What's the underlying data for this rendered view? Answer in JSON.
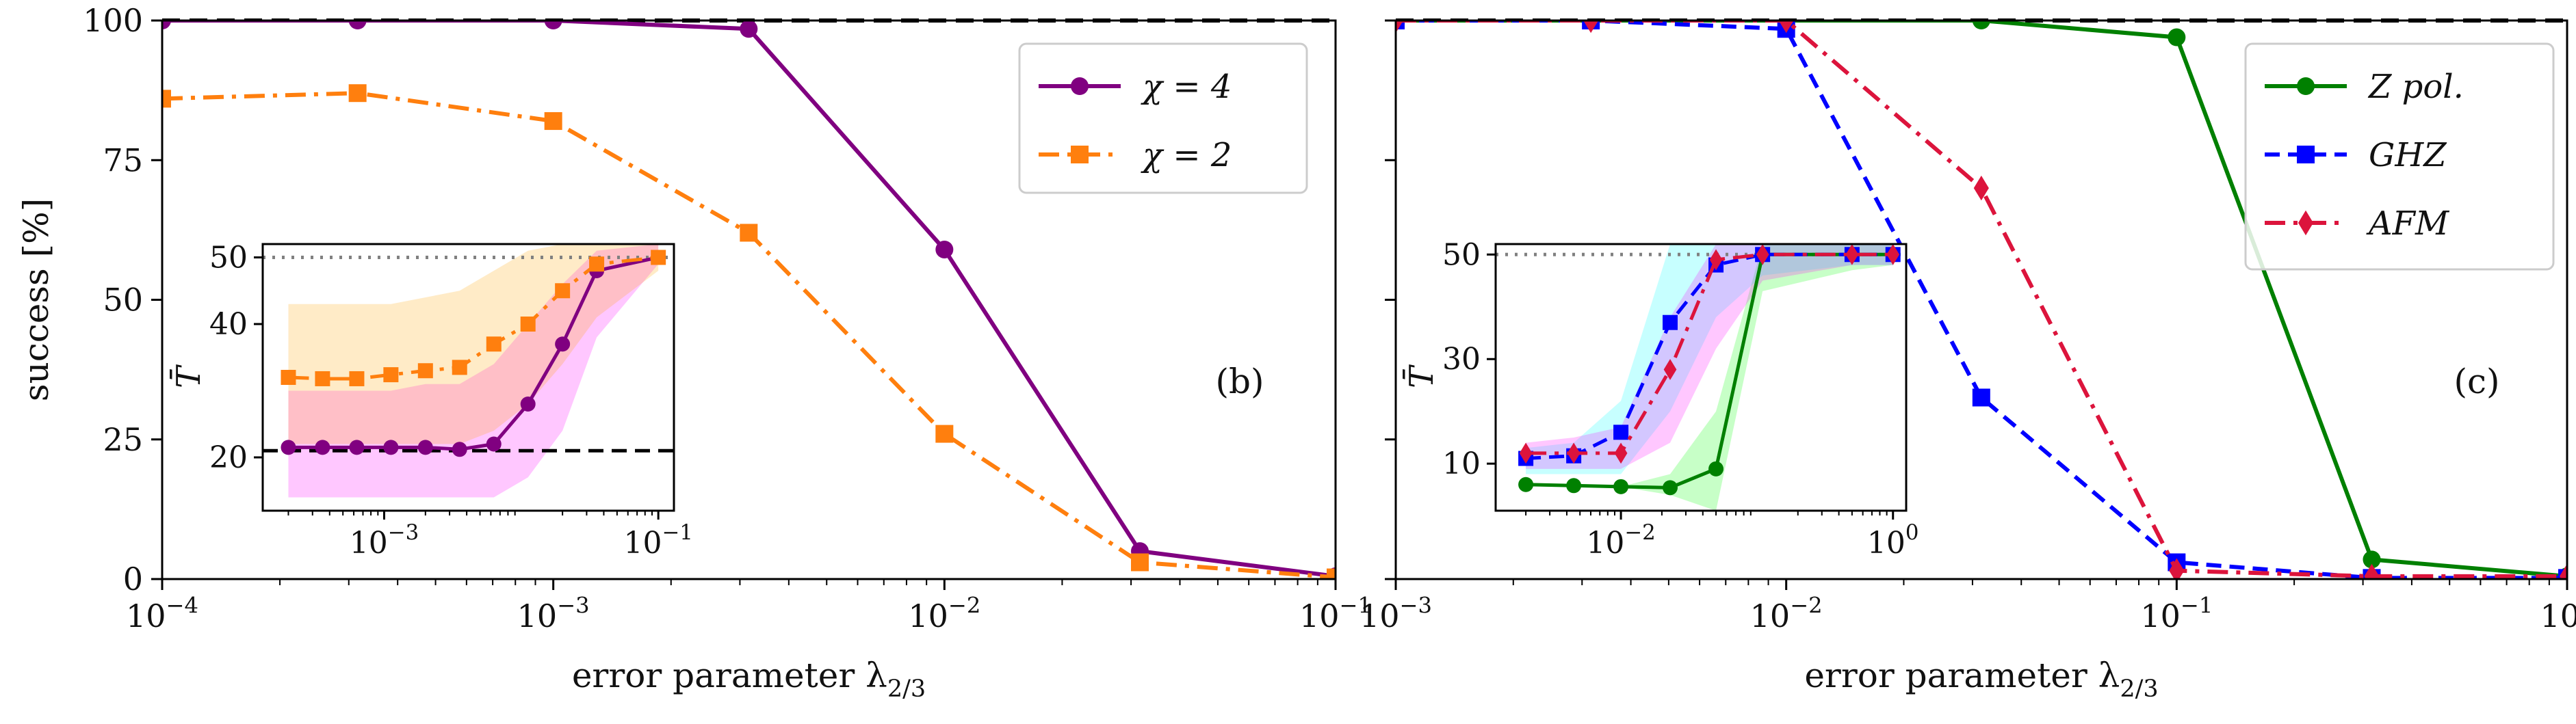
{
  "chart_data": [
    {
      "type": "line",
      "panel_label": "(b)",
      "xlabel": "error parameter λ2/3",
      "ylabel": "success [%]",
      "xscale": "log",
      "xlim": [
        0.0001,
        0.1
      ],
      "ylim": [
        0,
        100
      ],
      "xticks": [
        {
          "value": 0.0001,
          "label": "10-4"
        },
        {
          "value": 0.001,
          "label": "10-3"
        },
        {
          "value": 0.01,
          "label": "10-2"
        },
        {
          "value": 0.1,
          "label": "10-1"
        }
      ],
      "yticks": [
        {
          "value": 0,
          "label": "0"
        },
        {
          "value": 25,
          "label": "25"
        },
        {
          "value": 50,
          "label": "50"
        },
        {
          "value": 75,
          "label": "75"
        },
        {
          "value": 100,
          "label": "100"
        }
      ],
      "reference_line": 100,
      "legend_position": "top-right",
      "series": [
        {
          "name": "χ = 4",
          "color": "#800080",
          "marker": "circle",
          "dash": "solid",
          "x": [
            0.0001,
            0.000316,
            0.001,
            0.00316,
            0.01,
            0.0316,
            0.1
          ],
          "y": [
            100,
            100,
            100,
            98.5,
            59,
            5,
            0.5
          ]
        },
        {
          "name": "χ = 2",
          "color": "#ff7f0e",
          "marker": "square",
          "dash": "dashdot",
          "x": [
            0.0001,
            0.000316,
            0.001,
            0.00316,
            0.01,
            0.0316,
            0.1
          ],
          "y": [
            86,
            87,
            82,
            62,
            26,
            3,
            0.3
          ]
        }
      ],
      "inset": {
        "ylabel": "T̄",
        "xscale": "log",
        "xlim": [
          0.00013,
          0.13
        ],
        "ylim": [
          12,
          52
        ],
        "xticks": [
          {
            "value": 0.001,
            "label": "10-3"
          },
          {
            "value": 0.1,
            "label": "10-1"
          }
        ],
        "yticks": [
          {
            "value": 20,
            "label": "20"
          },
          {
            "value": 40,
            "label": "40"
          },
          {
            "value": 50,
            "label": "50"
          }
        ],
        "reference_lines": [
          {
            "value": 50,
            "style": "dotted",
            "color": "#808080"
          },
          {
            "value": 21,
            "style": "dashed",
            "color": "#000000"
          }
        ],
        "series": [
          {
            "color": "#800080",
            "marker": "circle",
            "dash": "solid",
            "band_color": "#ff00ff",
            "x": [
              0.0002,
              0.000355,
              0.000631,
              0.00112,
              0.002,
              0.00355,
              0.00631,
              0.0112,
              0.02,
              0.0355,
              0.1
            ],
            "y": [
              21.5,
              21.5,
              21.5,
              21.5,
              21.5,
              21.2,
              22,
              28,
              37,
              48,
              50
            ],
            "band_low": [
              14,
              14,
              14,
              14,
              14,
              14,
              14,
              17,
              24,
              38,
              49
            ],
            "band_high": [
              30,
              30,
              30,
              30,
              31,
              31,
              34,
              40,
              46,
              51,
              52
            ]
          },
          {
            "color": "#ff7f0e",
            "marker": "square",
            "dash": "dashdot",
            "band_color": "#ffa500",
            "x": [
              0.0002,
              0.000355,
              0.000631,
              0.00112,
              0.002,
              0.00355,
              0.00631,
              0.0112,
              0.02,
              0.0355,
              0.1
            ],
            "y": [
              32,
              31.8,
              31.8,
              32.4,
              33,
              33.5,
              37,
              40,
              45,
              49,
              50
            ],
            "band_low": [
              22,
              22,
              22,
              22,
              22,
              22,
              24,
              28,
              34,
              41,
              48
            ],
            "band_high": [
              43,
              43,
              43,
              43,
              44,
              45,
              48,
              51,
              52,
              52,
              52
            ]
          }
        ]
      }
    },
    {
      "type": "line",
      "panel_label": "(c)",
      "xlabel": "error parameter λ2/3",
      "ylabel": "",
      "xscale": "log",
      "xlim": [
        0.001,
        1
      ],
      "ylim": [
        0,
        100
      ],
      "xticks": [
        {
          "value": 0.001,
          "label": "10-3"
        },
        {
          "value": 0.01,
          "label": "10-2"
        },
        {
          "value": 0.1,
          "label": "10-1"
        },
        {
          "value": 1,
          "label": "100"
        }
      ],
      "yticks": [
        {
          "value": 0,
          "label": ""
        },
        {
          "value": 25,
          "label": ""
        },
        {
          "value": 50,
          "label": ""
        },
        {
          "value": 75,
          "label": ""
        },
        {
          "value": 100,
          "label": ""
        }
      ],
      "reference_line": 100,
      "legend_position": "top-right",
      "series": [
        {
          "name": "Z pol.",
          "color": "#008000",
          "marker": "circle",
          "dash": "solid",
          "x": [
            0.001,
            0.00316,
            0.01,
            0.0316,
            0.1,
            0.316,
            1
          ],
          "y": [
            100,
            100,
            100,
            100,
            97,
            3.5,
            0.5
          ]
        },
        {
          "name": "GHZ",
          "color": "#0000ff",
          "marker": "square",
          "dash": "dashed",
          "x": [
            0.001,
            0.00316,
            0.01,
            0.0316,
            0.1,
            0.316,
            1
          ],
          "y": [
            100,
            100,
            98.5,
            32.5,
            3,
            0.2,
            0.2
          ]
        },
        {
          "name": "AFM",
          "color": "#dc143c",
          "marker": "diamond",
          "dash": "dashdot",
          "x": [
            0.001,
            0.00316,
            0.01,
            0.0316,
            0.1,
            0.316,
            1
          ],
          "y": [
            100,
            100,
            100,
            70,
            1.5,
            0.5,
            0.5
          ]
        }
      ],
      "inset": {
        "ylabel": "T̄",
        "xscale": "log",
        "xlim": [
          0.0012,
          1.25
        ],
        "ylim": [
          1,
          52
        ],
        "xticks": [
          {
            "value": 0.01,
            "label": "10-2"
          },
          {
            "value": 1,
            "label": "100"
          }
        ],
        "yticks": [
          {
            "value": 10,
            "label": "10"
          },
          {
            "value": 30,
            "label": "30"
          },
          {
            "value": 50,
            "label": "50"
          }
        ],
        "reference_lines": [
          {
            "value": 50,
            "style": "dotted",
            "color": "#808080"
          }
        ],
        "series": [
          {
            "color": "#008000",
            "marker": "circle",
            "dash": "solid",
            "band_color": "#00ff00",
            "x": [
              0.002,
              0.0045,
              0.01,
              0.023,
              0.05,
              0.11,
              0.5,
              1
            ],
            "y": [
              6,
              5.8,
              5.6,
              5.4,
              9,
              50,
              50,
              50
            ],
            "band_low": [
              6,
              5.8,
              5.6,
              4,
              1,
              43,
              47,
              48
            ],
            "band_high": [
              6,
              5.8,
              5.6,
              8,
              20,
              52,
              52,
              52
            ]
          },
          {
            "color": "#0000ff",
            "marker": "square",
            "dash": "dashed",
            "band_color": "#00ffff",
            "x": [
              0.002,
              0.0045,
              0.01,
              0.023,
              0.05,
              0.11,
              0.5,
              1
            ],
            "y": [
              11,
              11.5,
              16,
              37,
              48,
              50,
              50,
              50
            ],
            "band_low": [
              8,
              8,
              8,
              20,
              38,
              46,
              48,
              48
            ],
            "band_high": [
              13,
              14,
              22,
              52,
              52,
              52,
              52,
              52
            ]
          },
          {
            "color": "#dc143c",
            "marker": "diamond",
            "dash": "dashdot",
            "band_color": "#ff00ff",
            "x": [
              0.002,
              0.0045,
              0.01,
              0.023,
              0.05,
              0.11,
              0.5,
              1
            ],
            "y": [
              12,
              12,
              12,
              28,
              49,
              50,
              50,
              50
            ],
            "band_low": [
              9,
              9,
              9,
              14,
              32,
              45,
              48,
              48
            ],
            "band_high": [
              14,
              15,
              17,
              38,
              52,
              52,
              52,
              52
            ]
          }
        ]
      }
    }
  ]
}
